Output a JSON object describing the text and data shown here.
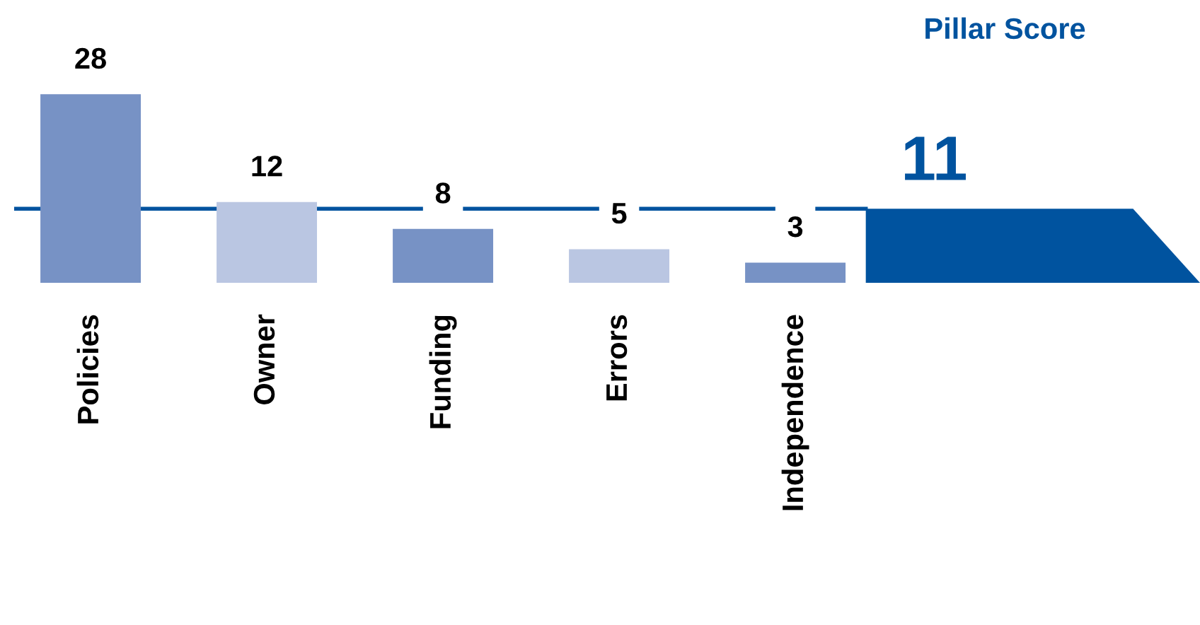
{
  "chart_data": {
    "type": "bar",
    "title": "Pillar Score",
    "categories": [
      "Policies",
      "Owner",
      "Funding",
      "Errors",
      "Independence"
    ],
    "values": [
      28,
      12,
      8,
      5,
      3
    ],
    "colors": [
      "#7792c5",
      "#bac6e2",
      "#7792c5",
      "#bac6e2",
      "#7792c5"
    ],
    "data_labels": true,
    "ref_lines": [
      {
        "axis": "y",
        "value": 11,
        "label": "11",
        "color": "#00539f"
      }
    ]
  }
}
